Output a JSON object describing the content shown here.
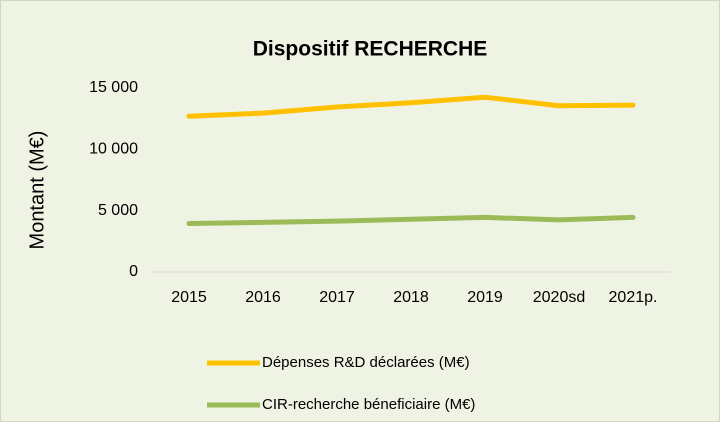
{
  "chart_data": {
    "type": "line",
    "title": "Dispositif RECHERCHE",
    "y_label": "Montant (M€)",
    "categories": [
      "2015",
      "2016",
      "2017",
      "2018",
      "2019",
      "2020sd",
      "2021p."
    ],
    "series": [
      {
        "name": "Dépenses R&D déclarées (M€)",
        "color": "#ffc000",
        "values": [
          12700,
          12950,
          13450,
          13800,
          14250,
          13550,
          13600
        ]
      },
      {
        "name": "CIR-recherche béneficiaire (M€)",
        "color": "#9bbb59",
        "values": [
          3950,
          4050,
          4150,
          4300,
          4450,
          4250,
          4450
        ]
      }
    ],
    "ylim": [
      0,
      15000
    ],
    "yticks": [
      0,
      {
        "value": 5000,
        "label": "5 000"
      },
      {
        "value": 10000,
        "label": "10 000"
      },
      {
        "value": 15000,
        "label": "15 000"
      }
    ],
    "grid": false,
    "legend": "bottom"
  }
}
